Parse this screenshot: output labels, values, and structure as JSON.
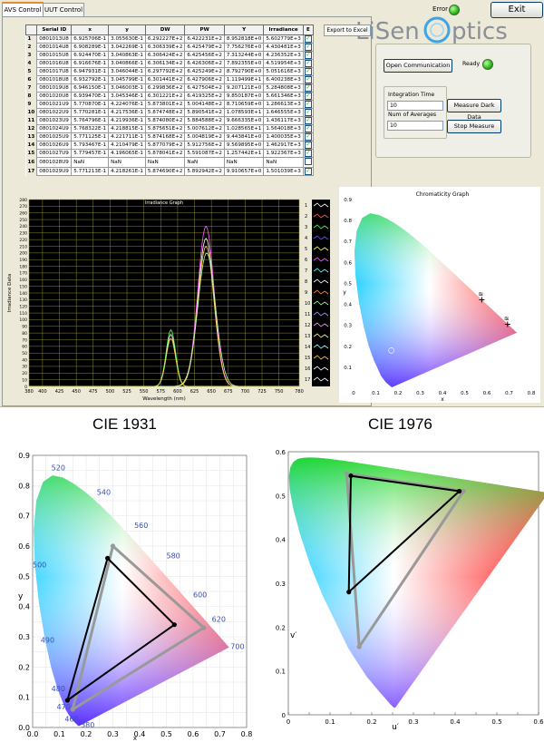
{
  "tabs": [
    {
      "label": "AVS Control",
      "active": true
    },
    {
      "label": "UUT Control",
      "active": false
    }
  ],
  "status": {
    "error_label": "Error",
    "ready_label": "Ready"
  },
  "buttons": {
    "exit": "Exit",
    "export": "Export to Excel",
    "open_comm": "Open Communication",
    "dark": "Measure Dark Data",
    "stop": "Stop Measure"
  },
  "logo": {
    "text_left": "LiSen",
    "text_right": "ptics"
  },
  "table": {
    "headers": [
      "Serial ID",
      "x",
      "y",
      "DW",
      "PW",
      "Y",
      "Irradiance",
      "E"
    ],
    "rows": [
      [
        "1",
        "0801013U8",
        "6.925706E-1",
        "3.055630E-1",
        "6.292227E+2",
        "6.422231E+2",
        "8.952818E+0",
        "5.602779E+3",
        "on"
      ],
      [
        "2",
        "0801014U8",
        "6.908289E-1",
        "3.042269E-1",
        "6.306339E+2",
        "6.425479E+2",
        "7.756276E+0",
        "4.430481E+3",
        "on"
      ],
      [
        "3",
        "0801015U8",
        "6.924470E-1",
        "3.040863E-1",
        "6.306424E+2",
        "6.425456E+2",
        "7.313244E+0",
        "4.236352E+3",
        "on"
      ],
      [
        "4",
        "0801016U8",
        "6.916676E-1",
        "3.040866E-1",
        "6.306134E+2",
        "6.426306E+2",
        "7.892355E+0",
        "4.519954E+3",
        "on"
      ],
      [
        "5",
        "0801017U8",
        "6.947931E-1",
        "3.046044E-1",
        "6.297792E+2",
        "6.425249E+2",
        "8.792790E+0",
        "5.051616E+3",
        "on"
      ],
      [
        "6",
        "0801018U8",
        "6.932792E-1",
        "3.045799E-1",
        "6.301441E+2",
        "6.427906E+2",
        "1.119499E+1",
        "6.400238E+3",
        "on"
      ],
      [
        "7",
        "0801019U8",
        "6.946150E-1",
        "3.046003E-1",
        "6.299836E+2",
        "6.427504E+2",
        "9.207121E+0",
        "5.284808E+3",
        "on"
      ],
      [
        "8",
        "0801020U8",
        "6.939470E-1",
        "3.045346E-1",
        "6.301221E+2",
        "6.419325E+2",
        "9.850187E+0",
        "5.661346E+3",
        "on"
      ],
      [
        "9",
        "0801021U9",
        "5.770870E-1",
        "4.224076E-1",
        "5.873801E+2",
        "5.004148E+2",
        "8.710659E+0",
        "1.286613E+3",
        "on"
      ],
      [
        "10",
        "0801022U9",
        "5.770281E-1",
        "4.217536E-1",
        "5.874748E+2",
        "5.890541E+2",
        "1.078593E+1",
        "1.646555E+3",
        "on"
      ],
      [
        "11",
        "0801023U9",
        "5.764796E-1",
        "4.219936E-1",
        "5.874080E+2",
        "5.884588E+2",
        "9.666335E+0",
        "1.436117E+3",
        "on"
      ],
      [
        "12",
        "0801024U9",
        "5.768322E-1",
        "4.218815E-1",
        "5.875651E+2",
        "5.007612E+2",
        "1.028565E+1",
        "1.564018E+3",
        "on"
      ],
      [
        "13",
        "0801025U9",
        "5.771125E-1",
        "4.221711E-1",
        "5.874168E+2",
        "5.004819E+2",
        "9.443841E+0",
        "1.400035E+3",
        "on"
      ],
      [
        "14",
        "0801026U9",
        "5.793467E-1",
        "4.210479E-1",
        "5.877079E+2",
        "5.912756E+2",
        "9.569895E+0",
        "1.462917E+3",
        "on"
      ],
      [
        "15",
        "0801027U9",
        "5.779457E-1",
        "4.196065E-1",
        "5.878041E+2",
        "5.591087E+2",
        "1.257442E+1",
        "1.922367E+3",
        "on"
      ],
      [
        "16",
        "0801028U9",
        "NaN",
        "NaN",
        "NaN",
        "NaN",
        "NaN",
        "NaN",
        "off"
      ],
      [
        "17",
        "0801029U9",
        "5.771213E-1",
        "4.218261E-1",
        "5.874690E+2",
        "5.892942E+2",
        "9.910657E+0",
        "1.501039E+3",
        "on"
      ]
    ]
  },
  "controls": {
    "integration_label": "Integration Time",
    "integration_value": "10",
    "averages_label": "Num of Averages",
    "averages_value": "10"
  },
  "irradiance_chart": {
    "type": "line",
    "title": "Irradiance Graph",
    "xlabel": "Wavelength (nm)",
    "ylabel": "Irradiance Data",
    "xlim": [
      380,
      780
    ],
    "ylim": [
      0,
      280
    ],
    "x_ticks": [
      380,
      400,
      425,
      450,
      475,
      500,
      525,
      550,
      575,
      600,
      625,
      650,
      675,
      700,
      725,
      750,
      780
    ],
    "y_ticks": [
      0,
      10,
      20,
      30,
      40,
      50,
      60,
      70,
      80,
      90,
      100,
      110,
      120,
      130,
      140,
      150,
      160,
      170,
      180,
      190,
      200,
      210,
      220,
      230,
      240,
      250,
      260,
      270,
      280
    ],
    "legend": [
      "1",
      "2",
      "3",
      "4",
      "5",
      "6",
      "7",
      "8",
      "9",
      "10",
      "11",
      "12",
      "13",
      "14",
      "15",
      "16",
      "17"
    ],
    "peaks": [
      {
        "center": 642,
        "height": 222,
        "width": 12,
        "color": "#ffffff"
      },
      {
        "center": 642,
        "height": 240,
        "width": 12,
        "color": "#ff60ff"
      },
      {
        "center": 642,
        "height": 210,
        "width": 12,
        "color": "#ffd040"
      },
      {
        "center": 643,
        "height": 200,
        "width": 13,
        "color": "#b0ffb0"
      },
      {
        "center": 590,
        "height": 78,
        "width": 7,
        "color": "#ffffff"
      },
      {
        "center": 590,
        "height": 85,
        "width": 7,
        "color": "#60ff60"
      },
      {
        "center": 590,
        "height": 72,
        "width": 7,
        "color": "#ffd040"
      }
    ]
  },
  "chromaticity_small": {
    "title": "Chromaticity Graph",
    "xlabel": "x",
    "ylabel": "y",
    "xlim": [
      0,
      0.8
    ],
    "ylim": [
      0,
      0.9
    ],
    "x_ticks": [
      "0",
      "0.1",
      "0.2",
      "0.3",
      "0.4",
      "0.5",
      "0.6",
      "0.7",
      "0.8"
    ],
    "y_ticks": [
      "0",
      "0.1",
      "0.2",
      "0.3",
      "0.4",
      "0.5",
      "0.6",
      "0.7",
      "0.8",
      "0.9"
    ],
    "points": [
      {
        "x": 0.577,
        "y": 0.422,
        "label": "≋"
      },
      {
        "x": 0.693,
        "y": 0.305,
        "label": "≋"
      }
    ]
  },
  "cie1931": {
    "title": "CIE 1931",
    "xlabel": "x",
    "ylabel": "y",
    "x_ticks": [
      "0.0",
      "0.1",
      "0.2",
      "0.3",
      "0.4",
      "0.5",
      "0.6",
      "0.7",
      "0.8"
    ],
    "y_ticks": [
      "0.0",
      "0.1",
      "0.2",
      "0.3",
      "0.4",
      "0.5",
      "0.6",
      "0.7",
      "0.8",
      "0.9"
    ],
    "wavelengths": [
      "520",
      "540",
      "560",
      "580",
      "600",
      "620",
      "700",
      "500",
      "490",
      "480",
      "470",
      "460",
      "380"
    ]
  },
  "cie1976": {
    "title": "CIE 1976",
    "xlabel": "u′",
    "ylabel": "v′",
    "x_ticks": [
      "0",
      "0.1",
      "0.2",
      "0.3",
      "0.4",
      "0.5",
      "0.6"
    ],
    "y_ticks": [
      "0",
      "0.1",
      "0.2",
      "0.3",
      "0.4",
      "0.5",
      "0.6"
    ]
  }
}
